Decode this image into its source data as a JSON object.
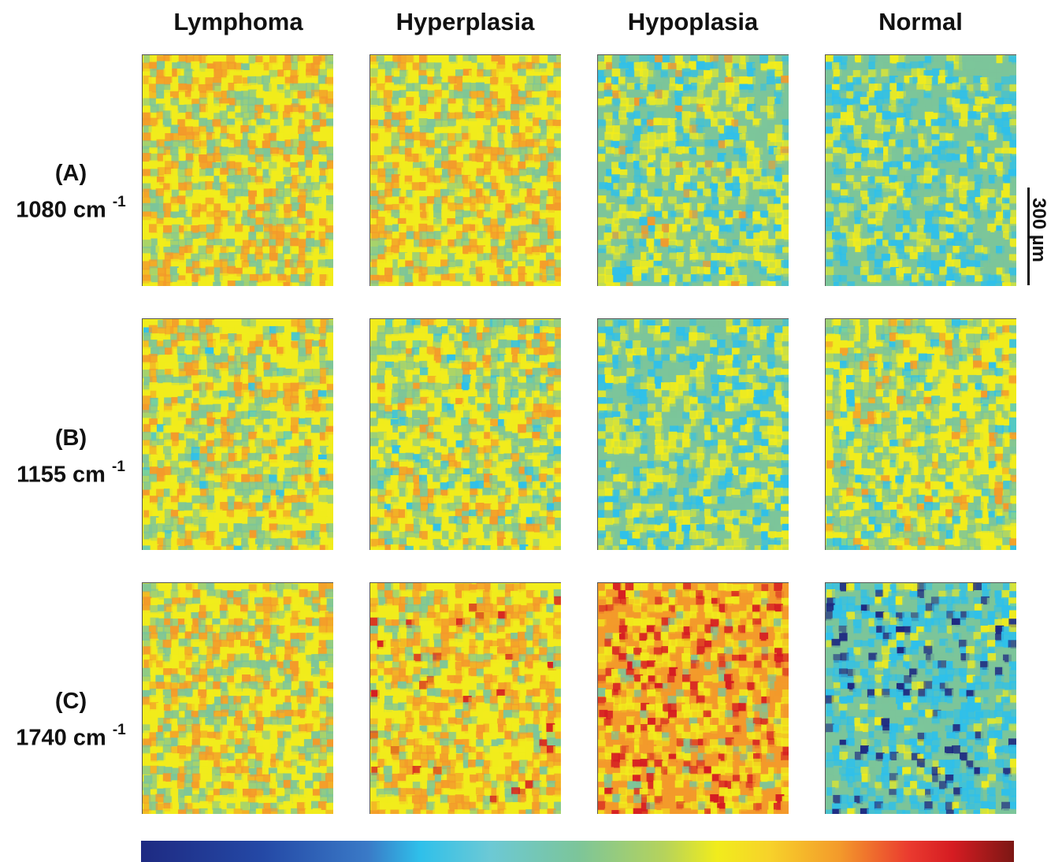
{
  "columns": [
    "Lymphoma",
    "Hyperplasia",
    "Hypoplasia",
    "Normal"
  ],
  "rows": [
    {
      "letter": "(A)",
      "wavenumber": "1080 cm",
      "exponent": "-1"
    },
    {
      "letter": "(B)",
      "wavenumber": "1155 cm",
      "exponent": "-1"
    },
    {
      "letter": "(C)",
      "wavenumber": "1740 cm",
      "exponent": "-1"
    }
  ],
  "scale_bar": {
    "label": "300 µm"
  },
  "colors": {
    "dark_blue": "#1e2a82",
    "blue": "#2fc0ea",
    "cyan_green": "#7cc59a",
    "yellow": "#f1ec1c",
    "orange": "#f39a2b",
    "red": "#d51c22",
    "dark_red": "#7c1714"
  }
}
